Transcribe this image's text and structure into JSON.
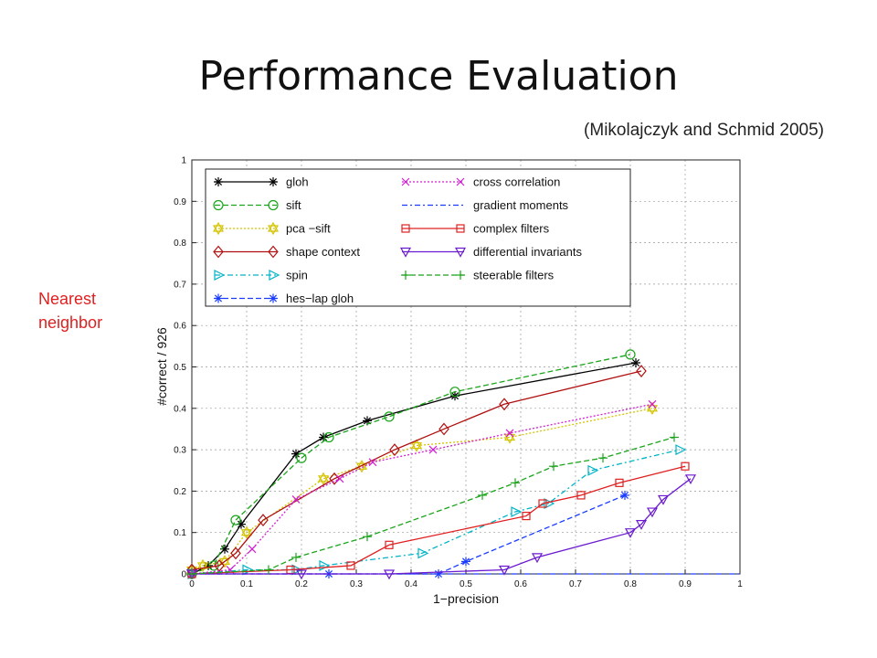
{
  "slide": {
    "title": "Performance Evaluation",
    "citation": "(Mikolajczyk and Schmid 2005)",
    "note_line1": "Nearest",
    "note_line2": "neighbor"
  },
  "chart_data": {
    "type": "line",
    "xlabel": "1−precision",
    "ylabel": "#correct / 926",
    "xlim": [
      0,
      1
    ],
    "ylim": [
      0,
      1
    ],
    "xticks": [
      0,
      0.1,
      0.2,
      0.3,
      0.4,
      0.5,
      0.6,
      0.7,
      0.8,
      0.9,
      1
    ],
    "yticks": [
      0,
      0.1,
      0.2,
      0.3,
      0.4,
      0.5,
      0.6,
      0.7,
      0.8,
      0.9,
      1
    ],
    "xtick_labels": [
      "0",
      "0.1",
      "0.2",
      "0.3",
      "0.4",
      "0.5",
      "0.6",
      "0.7",
      "0.8",
      "0.9",
      "1"
    ],
    "ytick_labels": [
      "0",
      "0.1",
      "0.2",
      "0.3",
      "0.4",
      "0.5",
      "0.6",
      "0.7",
      "0.8",
      "0.9",
      "1"
    ],
    "grid": true,
    "legend_position": "top",
    "series": [
      {
        "name": "gloh",
        "color": "#000000",
        "marker": "asterisk",
        "dash": "solid",
        "x": [
          0.0,
          0.03,
          0.06,
          0.09,
          0.19,
          0.24,
          0.32,
          0.48,
          0.81
        ],
        "y": [
          0.0,
          0.02,
          0.06,
          0.12,
          0.29,
          0.33,
          0.37,
          0.43,
          0.51
        ]
      },
      {
        "name": "sift",
        "color": "#1aa51a",
        "marker": "circle",
        "dash": "dashed",
        "x": [
          0.0,
          0.04,
          0.08,
          0.2,
          0.25,
          0.36,
          0.48,
          0.8
        ],
        "y": [
          0.0,
          0.02,
          0.13,
          0.28,
          0.33,
          0.38,
          0.44,
          0.53
        ]
      },
      {
        "name": "pca −sift",
        "color": "#d4c400",
        "marker": "hexagram",
        "dash": "dotted",
        "x": [
          0.0,
          0.02,
          0.06,
          0.1,
          0.24,
          0.31,
          0.41,
          0.58,
          0.84
        ],
        "y": [
          0.01,
          0.02,
          0.03,
          0.1,
          0.23,
          0.26,
          0.31,
          0.33,
          0.4
        ]
      },
      {
        "name": "shape context",
        "color": "#b01010",
        "marker": "diamond",
        "dash": "solid",
        "x": [
          0.0,
          0.05,
          0.08,
          0.13,
          0.26,
          0.37,
          0.46,
          0.57,
          0.82
        ],
        "y": [
          0.01,
          0.02,
          0.05,
          0.13,
          0.23,
          0.3,
          0.35,
          0.41,
          0.49
        ]
      },
      {
        "name": "spin",
        "color": "#00b4c8",
        "marker": "triangle-right",
        "dash": "dashdot",
        "x": [
          0.0,
          0.1,
          0.19,
          0.24,
          0.42,
          0.59,
          0.65,
          0.73,
          0.89
        ],
        "y": [
          0.0,
          0.01,
          0.01,
          0.02,
          0.05,
          0.15,
          0.17,
          0.25,
          0.3
        ]
      },
      {
        "name": "hes−lap gloh",
        "color": "#1a3cff",
        "marker": "asterisk",
        "dash": "dashed",
        "x": [
          0.0,
          0.25,
          0.45,
          0.5,
          0.79
        ],
        "y": [
          0.0,
          0.0,
          0.0,
          0.03,
          0.19
        ]
      },
      {
        "name": "cross correlation",
        "color": "#d020d0",
        "marker": "cross",
        "dash": "dotted",
        "x": [
          0.0,
          0.07,
          0.11,
          0.19,
          0.27,
          0.33,
          0.44,
          0.58,
          0.84
        ],
        "y": [
          0.0,
          0.01,
          0.06,
          0.18,
          0.23,
          0.27,
          0.3,
          0.34,
          0.41
        ]
      },
      {
        "name": "gradient moments",
        "color": "#1a3cff",
        "marker": "none",
        "dash": "dashdot",
        "x": [
          0.0,
          0.5,
          0.8,
          1.0
        ],
        "y": [
          0.0,
          0.0,
          0.0,
          0.0
        ]
      },
      {
        "name": "complex filters",
        "color": "#e02020",
        "marker": "square",
        "dash": "solid",
        "x": [
          0.0,
          0.18,
          0.29,
          0.36,
          0.61,
          0.64,
          0.71,
          0.78,
          0.9
        ],
        "y": [
          0.0,
          0.01,
          0.02,
          0.07,
          0.14,
          0.17,
          0.19,
          0.22,
          0.26
        ]
      },
      {
        "name": "differential invariants",
        "color": "#6a1ad0",
        "marker": "triangle-down",
        "dash": "solid",
        "x": [
          0.0,
          0.2,
          0.36,
          0.57,
          0.63,
          0.8,
          0.82,
          0.84,
          0.86,
          0.91
        ],
        "y": [
          0.0,
          0.0,
          0.0,
          0.01,
          0.04,
          0.1,
          0.12,
          0.15,
          0.18,
          0.23
        ]
      },
      {
        "name": "steerable filters",
        "color": "#1aa51a",
        "marker": "plus",
        "dash": "dashed",
        "x": [
          0.0,
          0.14,
          0.19,
          0.32,
          0.53,
          0.59,
          0.66,
          0.75,
          0.88
        ],
        "y": [
          0.0,
          0.01,
          0.04,
          0.09,
          0.19,
          0.22,
          0.26,
          0.28,
          0.33
        ]
      }
    ]
  }
}
